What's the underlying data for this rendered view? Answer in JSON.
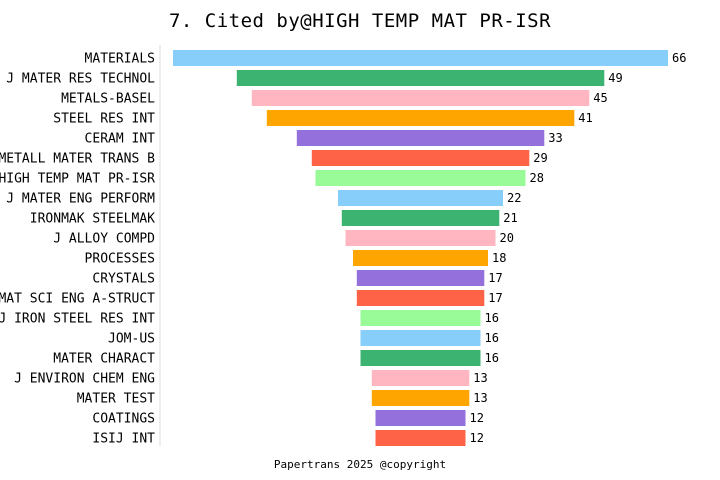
{
  "chart_data": {
    "type": "bar",
    "orientation": "horizontal-funnel",
    "title": "7. Cited by@HIGH TEMP MAT PR-ISR",
    "categories": [
      "MATERIALS",
      "J MATER RES TECHNOL",
      "METALS-BASEL",
      "STEEL RES INT",
      "CERAM INT",
      "METALL MATER TRANS B",
      "HIGH TEMP MAT PR-ISR",
      "J MATER ENG PERFORM",
      "IRONMAK STEELMAK",
      "J ALLOY COMPD",
      "PROCESSES",
      "CRYSTALS",
      "MAT SCI ENG A-STRUCT",
      "J IRON STEEL RES INT",
      "JOM-US",
      "MATER CHARACT",
      "J ENVIRON CHEM ENG",
      "MATER TEST",
      "COATINGS",
      "ISIJ INT"
    ],
    "values": [
      66,
      49,
      45,
      41,
      33,
      29,
      28,
      22,
      21,
      20,
      18,
      17,
      17,
      16,
      16,
      16,
      13,
      13,
      12,
      12
    ],
    "colors": [
      "#87CEFA",
      "#3CB371",
      "#FFB6C1",
      "#FFA500",
      "#9370DB",
      "#FF6347",
      "#98FB98"
    ],
    "footer": "Papertrans 2025 @copyright"
  }
}
